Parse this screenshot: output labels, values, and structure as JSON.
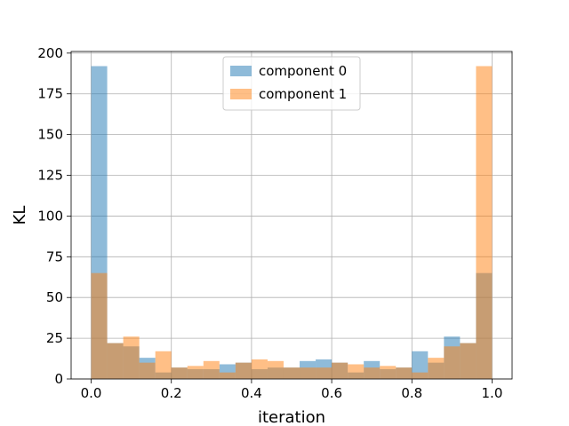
{
  "chart_data": {
    "type": "bar",
    "subtype": "overlapping-histogram",
    "xlabel": "iteration",
    "ylabel": "KL",
    "xlim": [
      -0.05,
      1.05
    ],
    "ylim": [
      0,
      201
    ],
    "xticks": [
      0.0,
      0.2,
      0.4,
      0.6,
      0.8,
      1.0
    ],
    "xtick_labels": [
      "0.0",
      "0.2",
      "0.4",
      "0.6",
      "0.8",
      "1.0"
    ],
    "yticks": [
      0,
      25,
      50,
      75,
      100,
      125,
      150,
      175,
      200
    ],
    "ytick_labels": [
      "0",
      "25",
      "50",
      "75",
      "100",
      "125",
      "150",
      "175",
      "200"
    ],
    "grid": true,
    "legend_position": "top-center",
    "bin_edges": [
      0.0,
      0.04,
      0.08,
      0.12,
      0.16,
      0.2,
      0.24,
      0.28,
      0.32,
      0.36,
      0.4,
      0.44,
      0.48,
      0.52,
      0.56,
      0.6,
      0.64,
      0.68,
      0.72,
      0.76,
      0.8,
      0.84,
      0.88,
      0.92,
      0.96,
      1.0
    ],
    "series": [
      {
        "name": "component 0",
        "color": "#1f77b4",
        "values": [
          192,
          22,
          20,
          13,
          4,
          7,
          6,
          6,
          9,
          10,
          6,
          7,
          7,
          11,
          12,
          10,
          4,
          11,
          6,
          7,
          17,
          10,
          26,
          22,
          65
        ]
      },
      {
        "name": "component 1",
        "color": "#ff7f0e",
        "values": [
          65,
          22,
          26,
          10,
          17,
          7,
          8,
          11,
          4,
          10,
          12,
          11,
          7,
          7,
          7,
          10,
          9,
          7,
          8,
          7,
          4,
          13,
          20,
          22,
          192
        ]
      }
    ],
    "alpha": 0.5
  }
}
